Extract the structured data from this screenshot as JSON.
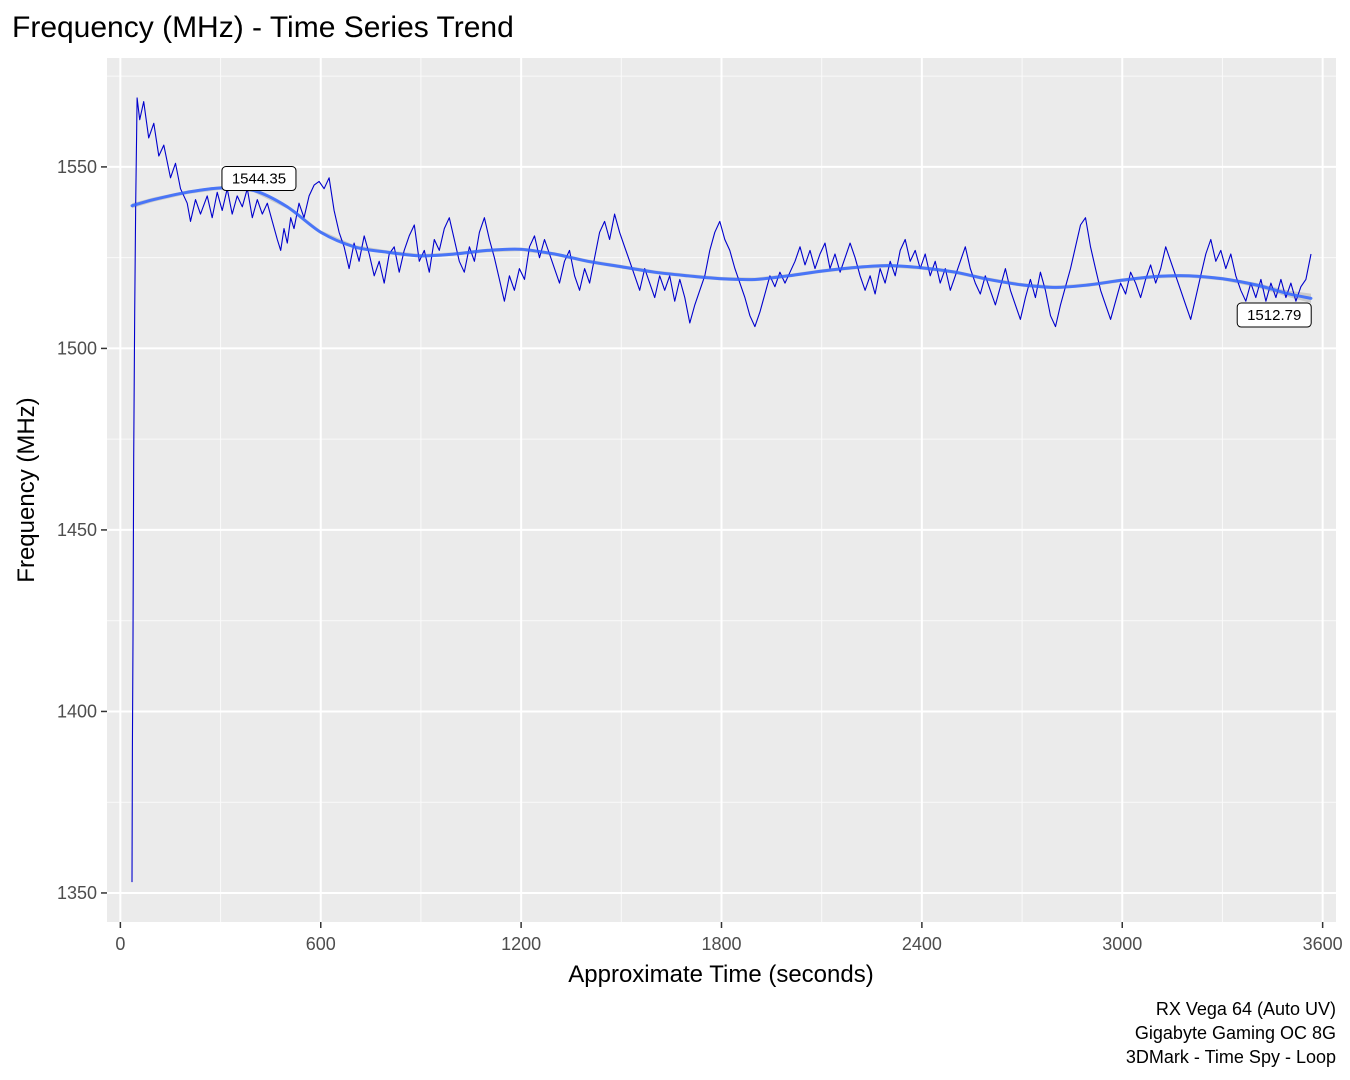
{
  "chart_data": {
    "type": "line",
    "title": "Frequency (MHz) - Time Series Trend",
    "xlabel": "Approximate Time (seconds)",
    "ylabel": "Frequency (MHz)",
    "xlim": [
      -40,
      3640
    ],
    "ylim": [
      1342,
      1580
    ],
    "x_ticks": [
      0,
      600,
      1200,
      1800,
      2400,
      3000,
      3600
    ],
    "x_tick_labels": [
      "0",
      "600",
      "1200",
      "1800",
      "2400",
      "3000",
      "3600"
    ],
    "x_minor_ticks": [
      300,
      900,
      1500,
      2100,
      2700,
      3300
    ],
    "y_ticks": [
      1350,
      1400,
      1450,
      1500,
      1550
    ],
    "y_tick_labels": [
      "1350",
      "1400",
      "1450",
      "1500",
      "1550"
    ],
    "y_minor_ticks": [
      1375,
      1425,
      1475,
      1525,
      1575
    ],
    "grid": true,
    "series": [
      {
        "kind": "raw",
        "color": "#0000cd",
        "points": [
          [
            35,
            1353
          ],
          [
            36,
            1390
          ],
          [
            38,
            1420
          ],
          [
            40,
            1470
          ],
          [
            43,
            1510
          ],
          [
            46,
            1540
          ],
          [
            50,
            1569
          ],
          [
            58,
            1563
          ],
          [
            70,
            1568
          ],
          [
            85,
            1558
          ],
          [
            100,
            1562
          ],
          [
            115,
            1553
          ],
          [
            130,
            1556
          ],
          [
            150,
            1547
          ],
          [
            165,
            1551
          ],
          [
            180,
            1544
          ],
          [
            200,
            1540
          ],
          [
            210,
            1535
          ],
          [
            225,
            1541
          ],
          [
            240,
            1537
          ],
          [
            260,
            1542
          ],
          [
            275,
            1536
          ],
          [
            290,
            1543
          ],
          [
            305,
            1538
          ],
          [
            320,
            1544
          ],
          [
            335,
            1537
          ],
          [
            350,
            1542
          ],
          [
            365,
            1539
          ],
          [
            380,
            1544
          ],
          [
            395,
            1536
          ],
          [
            410,
            1541
          ],
          [
            425,
            1537
          ],
          [
            440,
            1540
          ],
          [
            455,
            1535
          ],
          [
            470,
            1530
          ],
          [
            480,
            1527
          ],
          [
            490,
            1533
          ],
          [
            500,
            1529
          ],
          [
            510,
            1536
          ],
          [
            520,
            1533
          ],
          [
            535,
            1540
          ],
          [
            550,
            1536
          ],
          [
            565,
            1542
          ],
          [
            580,
            1545
          ],
          [
            595,
            1546
          ],
          [
            610,
            1544
          ],
          [
            625,
            1547
          ],
          [
            640,
            1538
          ],
          [
            655,
            1532
          ],
          [
            670,
            1528
          ],
          [
            685,
            1522
          ],
          [
            700,
            1529
          ],
          [
            715,
            1524
          ],
          [
            730,
            1531
          ],
          [
            745,
            1526
          ],
          [
            760,
            1520
          ],
          [
            775,
            1524
          ],
          [
            790,
            1518
          ],
          [
            805,
            1526
          ],
          [
            820,
            1528
          ],
          [
            835,
            1521
          ],
          [
            850,
            1527
          ],
          [
            865,
            1531
          ],
          [
            880,
            1534
          ],
          [
            895,
            1524
          ],
          [
            910,
            1527
          ],
          [
            925,
            1521
          ],
          [
            940,
            1530
          ],
          [
            955,
            1527
          ],
          [
            970,
            1533
          ],
          [
            985,
            1536
          ],
          [
            1000,
            1530
          ],
          [
            1015,
            1524
          ],
          [
            1030,
            1521
          ],
          [
            1045,
            1528
          ],
          [
            1060,
            1524
          ],
          [
            1075,
            1532
          ],
          [
            1090,
            1536
          ],
          [
            1105,
            1530
          ],
          [
            1120,
            1525
          ],
          [
            1135,
            1519
          ],
          [
            1150,
            1513
          ],
          [
            1165,
            1520
          ],
          [
            1180,
            1516
          ],
          [
            1195,
            1522
          ],
          [
            1210,
            1519
          ],
          [
            1225,
            1528
          ],
          [
            1240,
            1531
          ],
          [
            1255,
            1525
          ],
          [
            1270,
            1530
          ],
          [
            1285,
            1526
          ],
          [
            1300,
            1522
          ],
          [
            1315,
            1518
          ],
          [
            1330,
            1524
          ],
          [
            1345,
            1527
          ],
          [
            1360,
            1520
          ],
          [
            1375,
            1516
          ],
          [
            1390,
            1522
          ],
          [
            1405,
            1518
          ],
          [
            1420,
            1525
          ],
          [
            1435,
            1532
          ],
          [
            1450,
            1535
          ],
          [
            1465,
            1530
          ],
          [
            1480,
            1537
          ],
          [
            1495,
            1532
          ],
          [
            1510,
            1528
          ],
          [
            1525,
            1524
          ],
          [
            1540,
            1520
          ],
          [
            1555,
            1516
          ],
          [
            1570,
            1522
          ],
          [
            1585,
            1518
          ],
          [
            1600,
            1514
          ],
          [
            1615,
            1520
          ],
          [
            1630,
            1516
          ],
          [
            1645,
            1520
          ],
          [
            1660,
            1513
          ],
          [
            1675,
            1519
          ],
          [
            1690,
            1514
          ],
          [
            1705,
            1507
          ],
          [
            1720,
            1512
          ],
          [
            1735,
            1516
          ],
          [
            1750,
            1520
          ],
          [
            1765,
            1527
          ],
          [
            1780,
            1532
          ],
          [
            1795,
            1535
          ],
          [
            1810,
            1530
          ],
          [
            1825,
            1527
          ],
          [
            1840,
            1522
          ],
          [
            1855,
            1518
          ],
          [
            1870,
            1514
          ],
          [
            1885,
            1509
          ],
          [
            1900,
            1506
          ],
          [
            1915,
            1510
          ],
          [
            1930,
            1515
          ],
          [
            1945,
            1520
          ],
          [
            1960,
            1517
          ],
          [
            1975,
            1521
          ],
          [
            1990,
            1518
          ],
          [
            2005,
            1521
          ],
          [
            2020,
            1524
          ],
          [
            2035,
            1528
          ],
          [
            2050,
            1523
          ],
          [
            2065,
            1527
          ],
          [
            2080,
            1522
          ],
          [
            2095,
            1526
          ],
          [
            2110,
            1529
          ],
          [
            2125,
            1522
          ],
          [
            2140,
            1526
          ],
          [
            2155,
            1521
          ],
          [
            2170,
            1525
          ],
          [
            2185,
            1529
          ],
          [
            2200,
            1525
          ],
          [
            2215,
            1520
          ],
          [
            2230,
            1516
          ],
          [
            2245,
            1520
          ],
          [
            2260,
            1515
          ],
          [
            2275,
            1522
          ],
          [
            2290,
            1518
          ],
          [
            2305,
            1524
          ],
          [
            2320,
            1520
          ],
          [
            2335,
            1527
          ],
          [
            2350,
            1530
          ],
          [
            2365,
            1524
          ],
          [
            2380,
            1527
          ],
          [
            2395,
            1522
          ],
          [
            2410,
            1526
          ],
          [
            2425,
            1520
          ],
          [
            2440,
            1524
          ],
          [
            2455,
            1518
          ],
          [
            2470,
            1522
          ],
          [
            2485,
            1516
          ],
          [
            2500,
            1520
          ],
          [
            2515,
            1524
          ],
          [
            2530,
            1528
          ],
          [
            2545,
            1522
          ],
          [
            2560,
            1518
          ],
          [
            2575,
            1515
          ],
          [
            2590,
            1520
          ],
          [
            2605,
            1516
          ],
          [
            2620,
            1512
          ],
          [
            2635,
            1517
          ],
          [
            2650,
            1522
          ],
          [
            2665,
            1516
          ],
          [
            2680,
            1512
          ],
          [
            2695,
            1508
          ],
          [
            2710,
            1514
          ],
          [
            2725,
            1519
          ],
          [
            2740,
            1514
          ],
          [
            2755,
            1521
          ],
          [
            2770,
            1516
          ],
          [
            2785,
            1509
          ],
          [
            2800,
            1506
          ],
          [
            2815,
            1512
          ],
          [
            2830,
            1517
          ],
          [
            2845,
            1522
          ],
          [
            2860,
            1528
          ],
          [
            2875,
            1534
          ],
          [
            2890,
            1536
          ],
          [
            2905,
            1528
          ],
          [
            2920,
            1522
          ],
          [
            2935,
            1516
          ],
          [
            2950,
            1512
          ],
          [
            2965,
            1508
          ],
          [
            2980,
            1513
          ],
          [
            2995,
            1518
          ],
          [
            3010,
            1515
          ],
          [
            3025,
            1521
          ],
          [
            3040,
            1518
          ],
          [
            3055,
            1514
          ],
          [
            3070,
            1519
          ],
          [
            3085,
            1523
          ],
          [
            3100,
            1518
          ],
          [
            3115,
            1522
          ],
          [
            3130,
            1528
          ],
          [
            3145,
            1524
          ],
          [
            3160,
            1520
          ],
          [
            3175,
            1516
          ],
          [
            3190,
            1512
          ],
          [
            3205,
            1508
          ],
          [
            3220,
            1514
          ],
          [
            3235,
            1520
          ],
          [
            3250,
            1526
          ],
          [
            3265,
            1530
          ],
          [
            3280,
            1524
          ],
          [
            3295,
            1527
          ],
          [
            3310,
            1522
          ],
          [
            3325,
            1526
          ],
          [
            3340,
            1520
          ],
          [
            3355,
            1516
          ],
          [
            3370,
            1513
          ],
          [
            3385,
            1518
          ],
          [
            3400,
            1514
          ],
          [
            3415,
            1519
          ],
          [
            3430,
            1513
          ],
          [
            3445,
            1518
          ],
          [
            3460,
            1514
          ],
          [
            3475,
            1519
          ],
          [
            3490,
            1514
          ],
          [
            3505,
            1518
          ],
          [
            3520,
            1513
          ],
          [
            3535,
            1517
          ],
          [
            3550,
            1519
          ],
          [
            3565,
            1526
          ]
        ]
      },
      {
        "kind": "smooth",
        "color": "#3366ff",
        "band_color": "#bdbdbd",
        "points": [
          [
            35,
            1539.3
          ],
          [
            100,
            1541
          ],
          [
            200,
            1543
          ],
          [
            300,
            1544.2
          ],
          [
            400,
            1543.5
          ],
          [
            500,
            1539
          ],
          [
            600,
            1532
          ],
          [
            700,
            1528
          ],
          [
            800,
            1526.5
          ],
          [
            900,
            1525.5
          ],
          [
            1000,
            1526
          ],
          [
            1100,
            1527
          ],
          [
            1200,
            1527.3
          ],
          [
            1300,
            1526
          ],
          [
            1400,
            1524
          ],
          [
            1500,
            1522.5
          ],
          [
            1600,
            1521
          ],
          [
            1700,
            1520
          ],
          [
            1800,
            1519.2
          ],
          [
            1900,
            1519
          ],
          [
            2000,
            1520
          ],
          [
            2100,
            1521.3
          ],
          [
            2200,
            1522.3
          ],
          [
            2300,
            1522.8
          ],
          [
            2400,
            1522.2
          ],
          [
            2500,
            1521
          ],
          [
            2600,
            1519
          ],
          [
            2700,
            1517.5
          ],
          [
            2800,
            1516.8
          ],
          [
            2900,
            1517.5
          ],
          [
            3000,
            1518.8
          ],
          [
            3100,
            1519.8
          ],
          [
            3200,
            1520
          ],
          [
            3300,
            1519.2
          ],
          [
            3400,
            1517.5
          ],
          [
            3500,
            1515
          ],
          [
            3565,
            1513.8
          ]
        ],
        "band": [
          0.7,
          0.6,
          0.5,
          0.5,
          0.5,
          0.5,
          0.5,
          0.5,
          0.5,
          0.5,
          0.5,
          0.5,
          0.5,
          0.5,
          0.5,
          0.5,
          0.5,
          0.5,
          0.5,
          0.5,
          0.5,
          0.5,
          0.5,
          0.5,
          0.5,
          0.5,
          0.5,
          0.5,
          0.5,
          0.5,
          0.5,
          0.5,
          0.5,
          0.5,
          0.6,
          0.9,
          1.3
        ]
      }
    ],
    "annotations": [
      {
        "label": "1544.35",
        "x": 415,
        "y": 1546.8
      },
      {
        "label": "1512.79",
        "x": 3455,
        "y": 1509.2
      }
    ],
    "caption": [
      "RX Vega 64 (Auto UV)",
      "Gigabyte Gaming OC 8G",
      "3DMark - Time Spy - Loop"
    ]
  }
}
